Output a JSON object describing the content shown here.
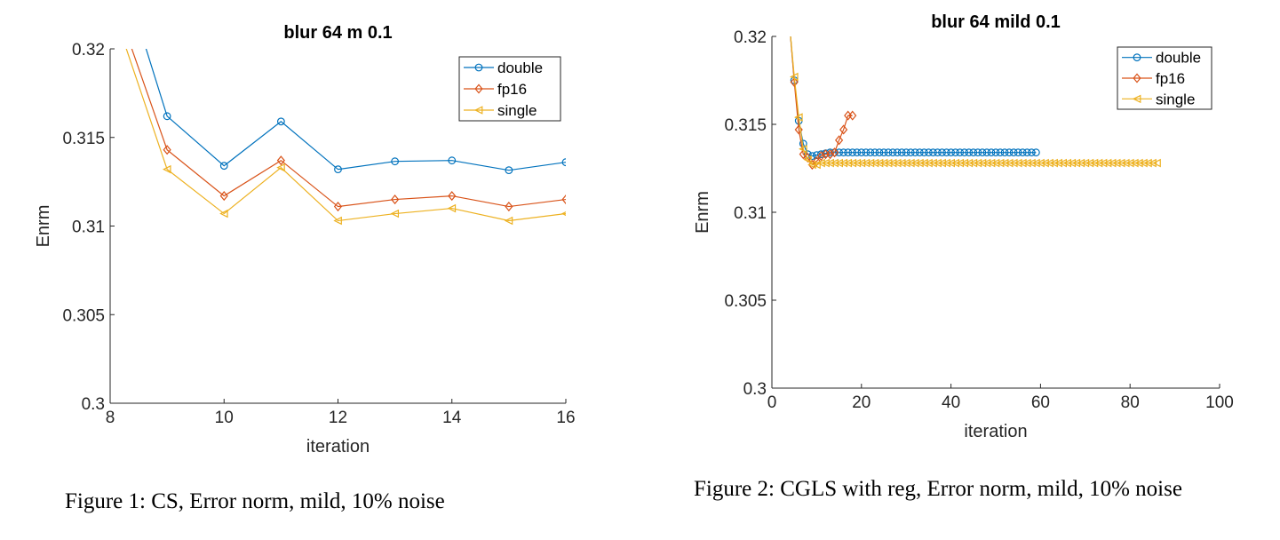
{
  "chart_data": [
    {
      "type": "line",
      "title": "blur 64 m 0.1",
      "xlabel": "iteration",
      "ylabel": "Enrm",
      "xlim": [
        8,
        16
      ],
      "ylim": [
        0.3,
        0.32
      ],
      "xticks": [
        8,
        10,
        12,
        14,
        16
      ],
      "xtick_labels": [
        "8",
        "10",
        "12",
        "14",
        "16"
      ],
      "yticks": [
        0.3,
        0.305,
        0.31,
        0.315,
        0.32
      ],
      "ytick_labels": [
        "0.3",
        "0.305",
        "0.31",
        "0.315",
        "0.32"
      ],
      "legend_position": "top-right",
      "grid": false,
      "series": [
        {
          "name": "double",
          "color": "#0072BD",
          "marker": "circle",
          "x": [
            8,
            9,
            10,
            11,
            12,
            13,
            14,
            15,
            16
          ],
          "y": [
            0.3265,
            0.3162,
            0.3134,
            0.3159,
            0.3132,
            0.31365,
            0.3137,
            0.31315,
            0.3136
          ]
        },
        {
          "name": "fp16",
          "color": "#D95319",
          "marker": "diamond",
          "x": [
            8,
            9,
            10,
            11,
            12,
            13,
            14,
            15,
            16
          ],
          "y": [
            0.3235,
            0.3143,
            0.3117,
            0.3137,
            0.3111,
            0.3115,
            0.3117,
            0.3111,
            0.3115
          ]
        },
        {
          "name": "single",
          "color": "#EDB120",
          "marker": "triangle-left",
          "x": [
            8,
            9,
            10,
            11,
            12,
            13,
            14,
            15,
            16
          ],
          "y": [
            0.3227,
            0.3132,
            0.3107,
            0.3133,
            0.3103,
            0.3107,
            0.311,
            0.3103,
            0.3107
          ]
        }
      ]
    },
    {
      "type": "line",
      "title": "blur 64 mild 0.1",
      "xlabel": "iteration",
      "ylabel": "Enrm",
      "xlim": [
        0,
        100
      ],
      "ylim": [
        0.3,
        0.32
      ],
      "xticks": [
        0,
        20,
        40,
        60,
        80,
        100
      ],
      "xtick_labels": [
        "0",
        "20",
        "40",
        "60",
        "80",
        "100"
      ],
      "yticks": [
        0.3,
        0.305,
        0.31,
        0.315,
        0.32
      ],
      "ytick_labels": [
        "0.3",
        "0.305",
        "0.31",
        "0.315",
        "0.32"
      ],
      "legend_position": "top-right",
      "grid": false,
      "series": [
        {
          "name": "double",
          "color": "#0072BD",
          "marker": "circle",
          "x": [
            4,
            5,
            6,
            7,
            8,
            9,
            10,
            11,
            12,
            13,
            14,
            15,
            16,
            17,
            18,
            19,
            20,
            21,
            22,
            23,
            24,
            25,
            26,
            27,
            28,
            29,
            30,
            31,
            32,
            33,
            34,
            35,
            36,
            37,
            38,
            39,
            40,
            41,
            42,
            43,
            44,
            45,
            46,
            47,
            48,
            49,
            50,
            51,
            52,
            53,
            54,
            55,
            56,
            57,
            58,
            59
          ],
          "y": [
            0.3205,
            0.3175,
            0.3152,
            0.3139,
            0.3133,
            0.3132,
            0.31325,
            0.3133,
            0.31335,
            0.3134,
            0.3134,
            0.3134,
            0.3134,
            0.3134,
            0.3134,
            0.3134,
            0.3134,
            0.3134,
            0.3134,
            0.3134,
            0.3134,
            0.3134,
            0.3134,
            0.3134,
            0.3134,
            0.3134,
            0.3134,
            0.3134,
            0.3134,
            0.3134,
            0.3134,
            0.3134,
            0.3134,
            0.3134,
            0.3134,
            0.3134,
            0.3134,
            0.3134,
            0.3134,
            0.3134,
            0.3134,
            0.3134,
            0.3134,
            0.3134,
            0.3134,
            0.3134,
            0.3134,
            0.3134,
            0.3134,
            0.3134,
            0.3134,
            0.3134,
            0.3134,
            0.3134,
            0.3134,
            0.3134
          ]
        },
        {
          "name": "fp16",
          "color": "#D95319",
          "marker": "diamond",
          "x": [
            4,
            5,
            6,
            7,
            8,
            9,
            10,
            11,
            12,
            13,
            14,
            15,
            16,
            17,
            18
          ],
          "y": [
            0.3205,
            0.3174,
            0.3147,
            0.3133,
            0.3131,
            0.3127,
            0.3129,
            0.3132,
            0.3133,
            0.3133,
            0.3134,
            0.3141,
            0.3147,
            0.3155,
            0.3155
          ]
        },
        {
          "name": "single",
          "color": "#EDB120",
          "marker": "triangle-left",
          "x": [
            4,
            5,
            6,
            7,
            8,
            9,
            10,
            11,
            12,
            13,
            14,
            15,
            16,
            17,
            18,
            19,
            20,
            21,
            22,
            23,
            24,
            25,
            26,
            27,
            28,
            29,
            30,
            31,
            32,
            33,
            34,
            35,
            36,
            37,
            38,
            39,
            40,
            41,
            42,
            43,
            44,
            45,
            46,
            47,
            48,
            49,
            50,
            51,
            52,
            53,
            54,
            55,
            56,
            57,
            58,
            59,
            60,
            61,
            62,
            63,
            64,
            65,
            66,
            67,
            68,
            69,
            70,
            71,
            72,
            73,
            74,
            75,
            76,
            77,
            78,
            79,
            80,
            81,
            82,
            83,
            84,
            85,
            86
          ],
          "y": [
            0.3205,
            0.3177,
            0.3154,
            0.3136,
            0.313,
            0.3127,
            0.3127,
            0.3128,
            0.3128,
            0.3128,
            0.3128,
            0.3128,
            0.3128,
            0.3128,
            0.3128,
            0.3128,
            0.3128,
            0.3128,
            0.3128,
            0.3128,
            0.3128,
            0.3128,
            0.3128,
            0.3128,
            0.3128,
            0.3128,
            0.3128,
            0.3128,
            0.3128,
            0.3128,
            0.3128,
            0.3128,
            0.3128,
            0.3128,
            0.3128,
            0.3128,
            0.3128,
            0.3128,
            0.3128,
            0.3128,
            0.3128,
            0.3128,
            0.3128,
            0.3128,
            0.3128,
            0.3128,
            0.3128,
            0.3128,
            0.3128,
            0.3128,
            0.3128,
            0.3128,
            0.3128,
            0.3128,
            0.3128,
            0.3128,
            0.3128,
            0.3128,
            0.3128,
            0.3128,
            0.3128,
            0.3128,
            0.3128,
            0.3128,
            0.3128,
            0.3128,
            0.3128,
            0.3128,
            0.3128,
            0.3128,
            0.3128,
            0.3128,
            0.3128,
            0.3128,
            0.3128,
            0.3128,
            0.3128,
            0.3128,
            0.3128,
            0.3128,
            0.3128,
            0.3128,
            0.3128
          ]
        }
      ]
    }
  ],
  "captions": {
    "fig1": "Figure 1: CS, Error norm, mild, 10% noise",
    "fig2": "Figure 2: CGLS with reg, Error norm, mild, 10% noise"
  }
}
